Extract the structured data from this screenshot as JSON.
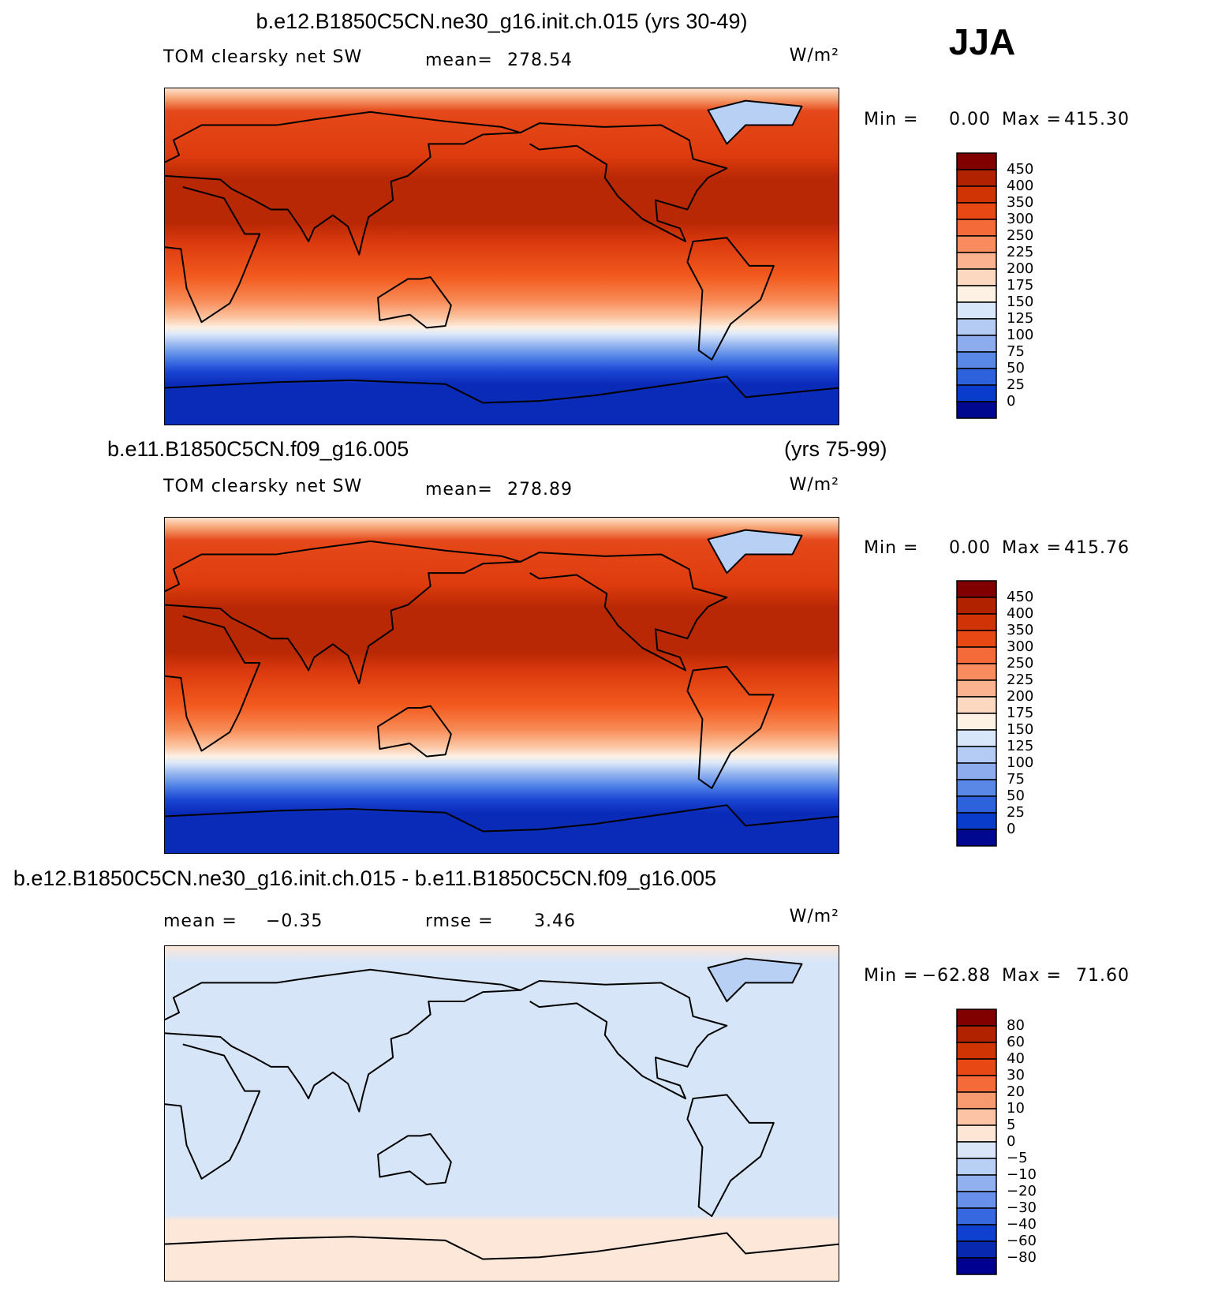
{
  "header": {
    "season": "JJA"
  },
  "panels": [
    {
      "title": "b.e12.B1850C5CN.ne30_g16.init.ch.015 (yrs 30-49)",
      "variable": "TOM clearsky net SW",
      "stats": [
        {
          "label": "mean=",
          "value": "278.54"
        }
      ],
      "units": "W/m²",
      "min": {
        "label": "Min =",
        "value": "0.00"
      },
      "max": {
        "label": "Max =",
        "value": "415.30"
      },
      "colorbar": {
        "labels": [
          "450",
          "400",
          "350",
          "300",
          "250",
          "225",
          "200",
          "175",
          "150",
          "125",
          "100",
          "75",
          "50",
          "25",
          "0"
        ],
        "colors": [
          "#800000",
          "#b02200",
          "#d03404",
          "#e84814",
          "#f46a38",
          "#f88c5e",
          "#fbb28e",
          "#fdd8c0",
          "#fdf1e4",
          "#d8e6f9",
          "#b4ccf4",
          "#8cacee",
          "#5a88e6",
          "#2e62dc",
          "#0a3ccc",
          "#000890"
        ]
      }
    },
    {
      "title": "b.e11.B1850C5CN.f09_g16.005",
      "title_right": "(yrs 75-99)",
      "variable": "TOM clearsky net SW",
      "stats": [
        {
          "label": "mean=",
          "value": "278.89"
        }
      ],
      "units": "W/m²",
      "min": {
        "label": "Min =",
        "value": "0.00"
      },
      "max": {
        "label": "Max =",
        "value": "415.76"
      },
      "colorbar": {
        "labels": [
          "450",
          "400",
          "350",
          "300",
          "250",
          "225",
          "200",
          "175",
          "150",
          "125",
          "100",
          "75",
          "50",
          "25",
          "0"
        ],
        "colors": [
          "#800000",
          "#b02200",
          "#d03404",
          "#e84814",
          "#f46a38",
          "#f88c5e",
          "#fbb28e",
          "#fdd8c0",
          "#fdf1e4",
          "#d8e6f9",
          "#b4ccf4",
          "#8cacee",
          "#5a88e6",
          "#2e62dc",
          "#0a3ccc",
          "#000890"
        ]
      }
    },
    {
      "title": "b.e12.B1850C5CN.ne30_g16.init.ch.015 - b.e11.B1850C5CN.f09_g16.005",
      "stats": [
        {
          "label": "mean =",
          "value": "−0.35"
        },
        {
          "label": "rmse =",
          "value": "3.46"
        }
      ],
      "units": "W/m²",
      "min": {
        "label": "Min =",
        "value": "−62.88"
      },
      "max": {
        "label": "Max =",
        "value": "71.60"
      },
      "colorbar": {
        "labels": [
          "80",
          "60",
          "40",
          "30",
          "20",
          "10",
          "5",
          "0",
          "−5",
          "−10",
          "−20",
          "−30",
          "−40",
          "−60",
          "−80"
        ],
        "colors": [
          "#800000",
          "#b02200",
          "#d03404",
          "#e84814",
          "#f46a38",
          "#f89a70",
          "#fcc4a4",
          "#fde6d6",
          "#d8e6f8",
          "#b8d0f4",
          "#90b0f0",
          "#6890ea",
          "#3868e0",
          "#1040d0",
          "#0828b0",
          "#000090"
        ]
      }
    }
  ]
}
